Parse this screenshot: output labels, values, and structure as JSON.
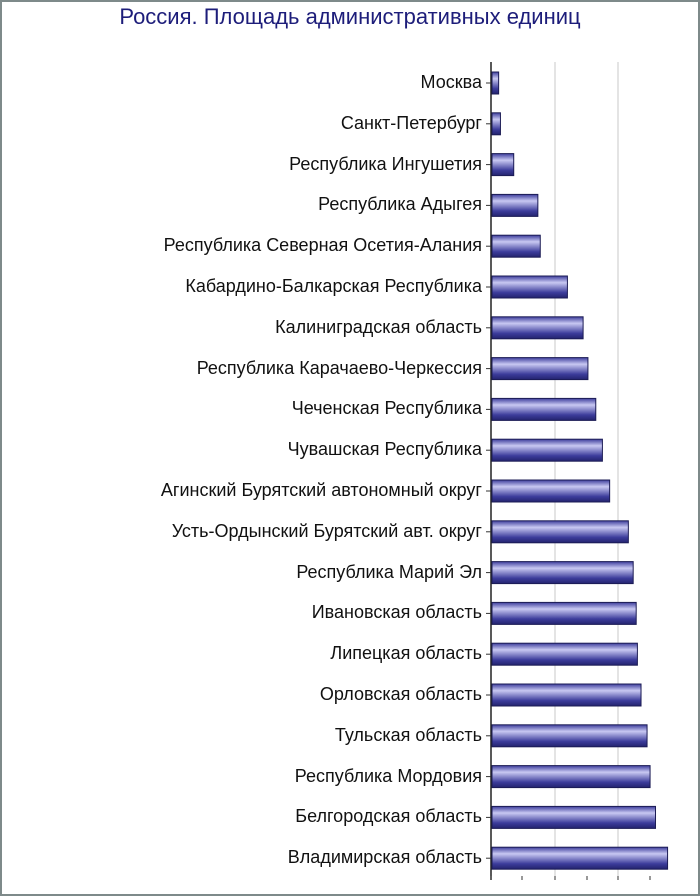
{
  "chart_data": {
    "type": "bar",
    "orientation": "horizontal",
    "title": "Россия. Площадь административных единиц",
    "categories": [
      "Москва",
      "Санкт-Петербург",
      "Республика Ингушетия",
      "Республика Адыгея",
      "Республика Северная Осетия-Алания",
      "Кабардино-Балкарская Республика",
      "Калиниградская область",
      "Республика Карачаево-Черкессия",
      "Чеченская Республика",
      "Чувашская Республика",
      "Агинский Бурятский автономный округ",
      "Усть-Ордынский Бурятский авт. округ",
      "Республика Марий Эл",
      "Ивановская область",
      "Липецкая область",
      "Орловская область",
      "Тульская область",
      "Республика Мордовия",
      "Белгородская область",
      "Владимирская область"
    ],
    "values": [
      1.1,
      1.4,
      3.6,
      7.6,
      8.0,
      12.5,
      15.1,
      15.9,
      17.2,
      18.3,
      19.5,
      22.6,
      23.4,
      23.9,
      24.1,
      24.7,
      25.7,
      26.2,
      27.1,
      29.1
    ],
    "xlim": [
      0,
      30
    ],
    "grid": true,
    "colors": {
      "bar": "#3d3d9c",
      "bar_light": "#c8c8f2",
      "bar_dark": "#23236e",
      "title": "#1d1d7a",
      "grid": "#c9c9c9"
    }
  }
}
